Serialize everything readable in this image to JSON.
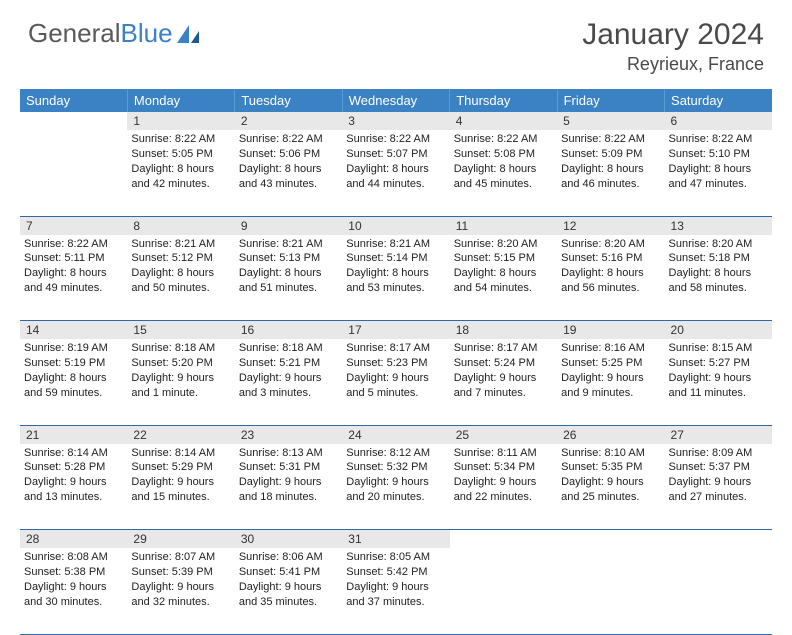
{
  "brand": {
    "part1": "General",
    "part2": "Blue"
  },
  "title": "January 2024",
  "location": "Reyrieux, France",
  "header_bg": "#3b82c4",
  "header_fg": "#ffffff",
  "daynum_bg": "#e8e8e8",
  "columns": [
    "Sunday",
    "Monday",
    "Tuesday",
    "Wednesday",
    "Thursday",
    "Friday",
    "Saturday"
  ],
  "weeks": [
    [
      {
        "n": "",
        "lines": []
      },
      {
        "n": "1",
        "lines": [
          "Sunrise: 8:22 AM",
          "Sunset: 5:05 PM",
          "Daylight: 8 hours",
          "and 42 minutes."
        ]
      },
      {
        "n": "2",
        "lines": [
          "Sunrise: 8:22 AM",
          "Sunset: 5:06 PM",
          "Daylight: 8 hours",
          "and 43 minutes."
        ]
      },
      {
        "n": "3",
        "lines": [
          "Sunrise: 8:22 AM",
          "Sunset: 5:07 PM",
          "Daylight: 8 hours",
          "and 44 minutes."
        ]
      },
      {
        "n": "4",
        "lines": [
          "Sunrise: 8:22 AM",
          "Sunset: 5:08 PM",
          "Daylight: 8 hours",
          "and 45 minutes."
        ]
      },
      {
        "n": "5",
        "lines": [
          "Sunrise: 8:22 AM",
          "Sunset: 5:09 PM",
          "Daylight: 8 hours",
          "and 46 minutes."
        ]
      },
      {
        "n": "6",
        "lines": [
          "Sunrise: 8:22 AM",
          "Sunset: 5:10 PM",
          "Daylight: 8 hours",
          "and 47 minutes."
        ]
      }
    ],
    [
      {
        "n": "7",
        "lines": [
          "Sunrise: 8:22 AM",
          "Sunset: 5:11 PM",
          "Daylight: 8 hours",
          "and 49 minutes."
        ]
      },
      {
        "n": "8",
        "lines": [
          "Sunrise: 8:21 AM",
          "Sunset: 5:12 PM",
          "Daylight: 8 hours",
          "and 50 minutes."
        ]
      },
      {
        "n": "9",
        "lines": [
          "Sunrise: 8:21 AM",
          "Sunset: 5:13 PM",
          "Daylight: 8 hours",
          "and 51 minutes."
        ]
      },
      {
        "n": "10",
        "lines": [
          "Sunrise: 8:21 AM",
          "Sunset: 5:14 PM",
          "Daylight: 8 hours",
          "and 53 minutes."
        ]
      },
      {
        "n": "11",
        "lines": [
          "Sunrise: 8:20 AM",
          "Sunset: 5:15 PM",
          "Daylight: 8 hours",
          "and 54 minutes."
        ]
      },
      {
        "n": "12",
        "lines": [
          "Sunrise: 8:20 AM",
          "Sunset: 5:16 PM",
          "Daylight: 8 hours",
          "and 56 minutes."
        ]
      },
      {
        "n": "13",
        "lines": [
          "Sunrise: 8:20 AM",
          "Sunset: 5:18 PM",
          "Daylight: 8 hours",
          "and 58 minutes."
        ]
      }
    ],
    [
      {
        "n": "14",
        "lines": [
          "Sunrise: 8:19 AM",
          "Sunset: 5:19 PM",
          "Daylight: 8 hours",
          "and 59 minutes."
        ]
      },
      {
        "n": "15",
        "lines": [
          "Sunrise: 8:18 AM",
          "Sunset: 5:20 PM",
          "Daylight: 9 hours",
          "and 1 minute."
        ]
      },
      {
        "n": "16",
        "lines": [
          "Sunrise: 8:18 AM",
          "Sunset: 5:21 PM",
          "Daylight: 9 hours",
          "and 3 minutes."
        ]
      },
      {
        "n": "17",
        "lines": [
          "Sunrise: 8:17 AM",
          "Sunset: 5:23 PM",
          "Daylight: 9 hours",
          "and 5 minutes."
        ]
      },
      {
        "n": "18",
        "lines": [
          "Sunrise: 8:17 AM",
          "Sunset: 5:24 PM",
          "Daylight: 9 hours",
          "and 7 minutes."
        ]
      },
      {
        "n": "19",
        "lines": [
          "Sunrise: 8:16 AM",
          "Sunset: 5:25 PM",
          "Daylight: 9 hours",
          "and 9 minutes."
        ]
      },
      {
        "n": "20",
        "lines": [
          "Sunrise: 8:15 AM",
          "Sunset: 5:27 PM",
          "Daylight: 9 hours",
          "and 11 minutes."
        ]
      }
    ],
    [
      {
        "n": "21",
        "lines": [
          "Sunrise: 8:14 AM",
          "Sunset: 5:28 PM",
          "Daylight: 9 hours",
          "and 13 minutes."
        ]
      },
      {
        "n": "22",
        "lines": [
          "Sunrise: 8:14 AM",
          "Sunset: 5:29 PM",
          "Daylight: 9 hours",
          "and 15 minutes."
        ]
      },
      {
        "n": "23",
        "lines": [
          "Sunrise: 8:13 AM",
          "Sunset: 5:31 PM",
          "Daylight: 9 hours",
          "and 18 minutes."
        ]
      },
      {
        "n": "24",
        "lines": [
          "Sunrise: 8:12 AM",
          "Sunset: 5:32 PM",
          "Daylight: 9 hours",
          "and 20 minutes."
        ]
      },
      {
        "n": "25",
        "lines": [
          "Sunrise: 8:11 AM",
          "Sunset: 5:34 PM",
          "Daylight: 9 hours",
          "and 22 minutes."
        ]
      },
      {
        "n": "26",
        "lines": [
          "Sunrise: 8:10 AM",
          "Sunset: 5:35 PM",
          "Daylight: 9 hours",
          "and 25 minutes."
        ]
      },
      {
        "n": "27",
        "lines": [
          "Sunrise: 8:09 AM",
          "Sunset: 5:37 PM",
          "Daylight: 9 hours",
          "and 27 minutes."
        ]
      }
    ],
    [
      {
        "n": "28",
        "lines": [
          "Sunrise: 8:08 AM",
          "Sunset: 5:38 PM",
          "Daylight: 9 hours",
          "and 30 minutes."
        ]
      },
      {
        "n": "29",
        "lines": [
          "Sunrise: 8:07 AM",
          "Sunset: 5:39 PM",
          "Daylight: 9 hours",
          "and 32 minutes."
        ]
      },
      {
        "n": "30",
        "lines": [
          "Sunrise: 8:06 AM",
          "Sunset: 5:41 PM",
          "Daylight: 9 hours",
          "and 35 minutes."
        ]
      },
      {
        "n": "31",
        "lines": [
          "Sunrise: 8:05 AM",
          "Sunset: 5:42 PM",
          "Daylight: 9 hours",
          "and 37 minutes."
        ]
      },
      {
        "n": "",
        "lines": []
      },
      {
        "n": "",
        "lines": []
      },
      {
        "n": "",
        "lines": []
      }
    ]
  ]
}
